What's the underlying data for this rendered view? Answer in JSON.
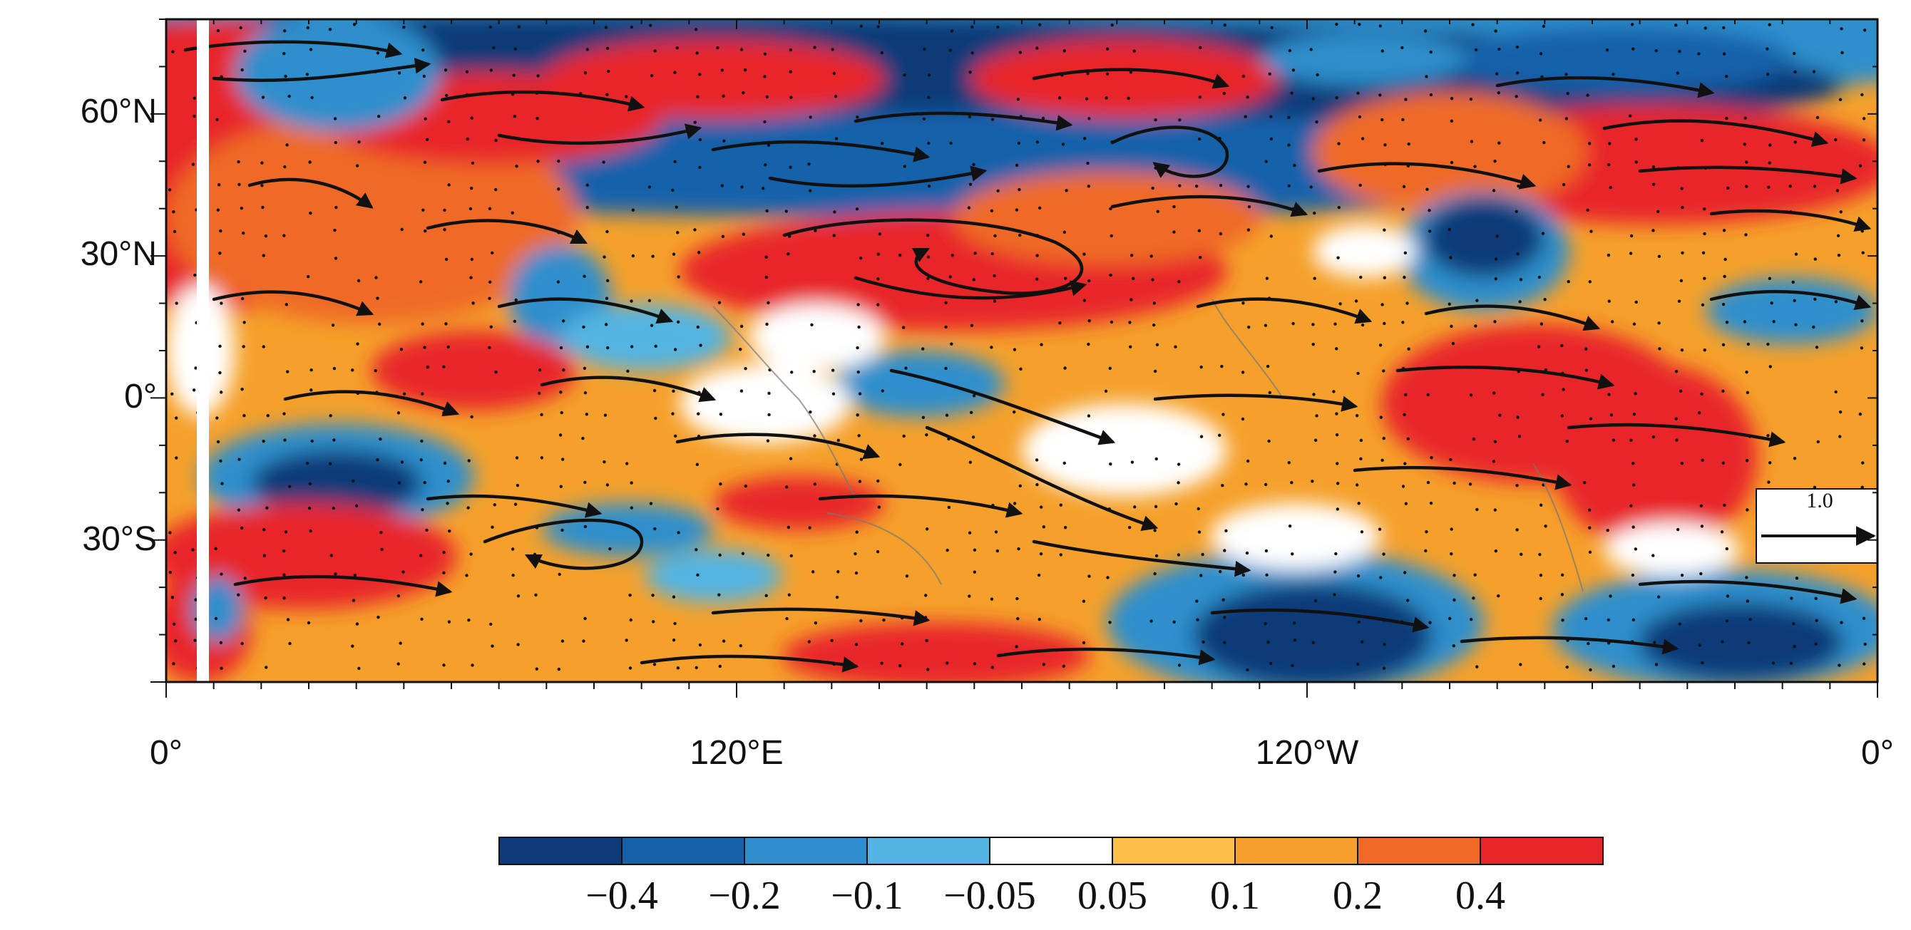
{
  "map": {
    "projection": "cylindrical-equidistant",
    "lon_range": [
      0,
      360
    ],
    "lat_range": [
      -60,
      80
    ],
    "y_ticks": [
      {
        "lat": 60,
        "label": "60°N"
      },
      {
        "lat": 30,
        "label": "30°N"
      },
      {
        "lat": 0,
        "label": "0°"
      },
      {
        "lat": -30,
        "label": "30°S"
      }
    ],
    "x_ticks": [
      {
        "lon": 0,
        "label": "0°"
      },
      {
        "lon": 120,
        "label": "120°E"
      },
      {
        "lon": 240,
        "label": "120°W"
      },
      {
        "lon": 360,
        "label": "0°"
      }
    ],
    "stippling": true,
    "vectors": "streamlines",
    "reference_vector": {
      "label": "1.0"
    }
  },
  "colorbar": {
    "colors": [
      "#0d3a78",
      "#1562aa",
      "#2f8fcc",
      "#52b4e2",
      "#ffffff",
      "#fdbe4a",
      "#f5a02a",
      "#ef6a26",
      "#e8262a"
    ],
    "labels": [
      "−0.4",
      "−0.2",
      "−0.1",
      "−0.05",
      "0.05",
      "0.1",
      "0.2",
      "0.4"
    ]
  }
}
